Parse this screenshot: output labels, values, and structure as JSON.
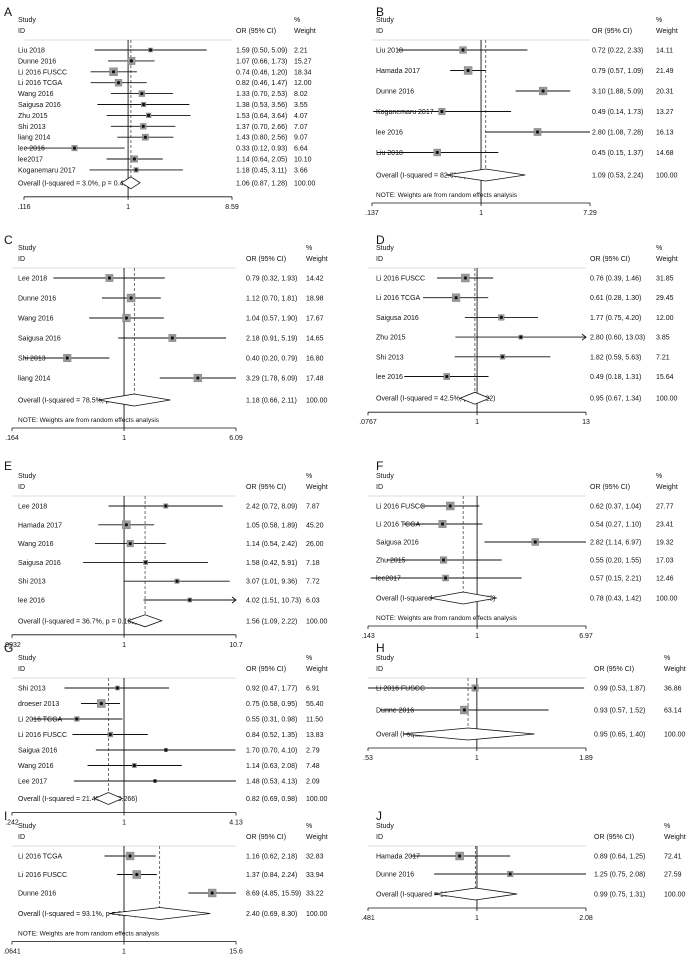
{
  "chart_data": [
    {
      "panel": "A",
      "type": "forest",
      "header": {
        "study": "Study",
        "id": "ID",
        "or": "OR (95% CI)",
        "pct": "%",
        "weight": "Weight"
      },
      "rows": [
        {
          "study": "Liu 2018",
          "or": 1.59,
          "lo": 0.5,
          "hi": 5.09,
          "label": "1.59 (0.50, 5.09)",
          "weight": "2.21"
        },
        {
          "study": "Dunne 2016",
          "or": 1.07,
          "lo": 0.66,
          "hi": 1.73,
          "label": "1.07 (0.66, 1.73)",
          "weight": "15.27"
        },
        {
          "study": "Li 2016 FUSCC",
          "or": 0.74,
          "lo": 0.46,
          "hi": 1.2,
          "label": "0.74 (0.46, 1.20)",
          "weight": "18.34"
        },
        {
          "study": "Li 2016 TCGA",
          "or": 0.82,
          "lo": 0.46,
          "hi": 1.47,
          "label": "0.82 (0.46, 1.47)",
          "weight": "12.00"
        },
        {
          "study": "Wang 2016",
          "or": 1.33,
          "lo": 0.7,
          "hi": 2.53,
          "label": "1.33 (0.70, 2.53)",
          "weight": "8.02"
        },
        {
          "study": "Saigusa 2016",
          "or": 1.38,
          "lo": 0.53,
          "hi": 3.56,
          "label": "1.38 (0.53, 3.56)",
          "weight": "3.55"
        },
        {
          "study": "Zhu 2015",
          "or": 1.53,
          "lo": 0.64,
          "hi": 3.64,
          "label": "1.53 (0.64, 3.64)",
          "weight": "4.07"
        },
        {
          "study": "Shi 2013",
          "or": 1.37,
          "lo": 0.7,
          "hi": 2.66,
          "label": "1.37 (0.70, 2.66)",
          "weight": "7.07"
        },
        {
          "study": "liang 2014",
          "or": 1.43,
          "lo": 0.8,
          "hi": 2.56,
          "label": "1.43 (0.80, 2.56)",
          "weight": "9.07"
        },
        {
          "study": "lee 2016",
          "or": 0.33,
          "lo": 0.12,
          "hi": 0.93,
          "label": "0.33 (0.12, 0.93)",
          "weight": "6.64"
        },
        {
          "study": "lee2017",
          "or": 1.14,
          "lo": 0.64,
          "hi": 2.05,
          "label": "1.14 (0.64, 2.05)",
          "weight": "10.10"
        },
        {
          "study": "Koganemaru 2017",
          "or": 1.18,
          "lo": 0.45,
          "hi": 3.11,
          "label": "1.18 (0.45, 3.11)",
          "weight": "3.66"
        }
      ],
      "overall": {
        "study": "Overall  (I-squared = 3.0%, p = 0.415)",
        "or": 1.06,
        "lo": 0.87,
        "hi": 1.28,
        "label": "1.06 (0.87, 1.28)",
        "weight": "100.00"
      },
      "note": "",
      "axis": {
        "min": 0.116,
        "max": 8.59,
        "ticks": [
          ".116",
          "1",
          "8.59"
        ]
      }
    },
    {
      "panel": "B",
      "type": "forest",
      "header": {
        "study": "Study",
        "id": "ID",
        "or": "OR (95% CI)",
        "pct": "%",
        "weight": "Weight"
      },
      "rows": [
        {
          "study": "Liu 2018",
          "or": 0.72,
          "lo": 0.22,
          "hi": 2.33,
          "label": "0.72 (0.22, 2.33)",
          "weight": "14.11"
        },
        {
          "study": "Hamada 2017",
          "or": 0.79,
          "lo": 0.57,
          "hi": 1.09,
          "label": "0.79 (0.57, 1.09)",
          "weight": "21.49"
        },
        {
          "study": "Dunne 2016",
          "or": 3.1,
          "lo": 1.88,
          "hi": 5.09,
          "label": "3.10 (1.88, 5.09)",
          "weight": "20.31"
        },
        {
          "study": "Koganemaru 2017",
          "or": 0.49,
          "lo": 0.14,
          "hi": 1.73,
          "label": "0.49 (0.14, 1.73)",
          "weight": "13.27"
        },
        {
          "study": "lee 2016",
          "or": 2.8,
          "lo": 1.08,
          "hi": 7.28,
          "label": "2.80 (1.08, 7.28)",
          "weight": "16.13"
        },
        {
          "study": "Liu 2018",
          "or": 0.45,
          "lo": 0.15,
          "hi": 1.37,
          "label": "0.45 (0.15, 1.37)",
          "weight": "14.68"
        }
      ],
      "overall": {
        "study": "Overall  (I-squared = 82.6%, p = 0.000)",
        "or": 1.09,
        "lo": 0.53,
        "hi": 2.24,
        "label": "1.09 (0.53, 2.24)",
        "weight": "100.00"
      },
      "note": "NOTE: Weights are from random effects analysis",
      "axis": {
        "min": 0.137,
        "max": 7.29,
        "ticks": [
          ".137",
          "1",
          "7.29"
        ]
      }
    },
    {
      "panel": "C",
      "type": "forest",
      "header": {
        "study": "Study",
        "id": "ID",
        "or": "OR (95% CI)",
        "pct": "%",
        "weight": "Weight"
      },
      "rows": [
        {
          "study": "Lee 2018",
          "or": 0.79,
          "lo": 0.32,
          "hi": 1.93,
          "label": "0.79 (0.32, 1.93)",
          "weight": "14.42"
        },
        {
          "study": "Dunne 2016",
          "or": 1.12,
          "lo": 0.7,
          "hi": 1.81,
          "label": "1.12 (0.70, 1.81)",
          "weight": "18.98"
        },
        {
          "study": "Wang 2016",
          "or": 1.04,
          "lo": 0.57,
          "hi": 1.9,
          "label": "1.04 (0.57, 1.90)",
          "weight": "17.67"
        },
        {
          "study": "Saigusa 2016",
          "or": 2.18,
          "lo": 0.91,
          "hi": 5.19,
          "label": "2.18 (0.91, 5.19)",
          "weight": "14.65"
        },
        {
          "study": "Shi 2013",
          "or": 0.4,
          "lo": 0.2,
          "hi": 0.79,
          "label": "0.40 (0.20, 0.79)",
          "weight": "16.80"
        },
        {
          "study": "liang 2014",
          "or": 3.29,
          "lo": 1.78,
          "hi": 6.09,
          "label": "3.29 (1.78, 6.09)",
          "weight": "17.48"
        }
      ],
      "overall": {
        "study": "Overall  (I-squared = 78.5%, p = 0.000)",
        "or": 1.18,
        "lo": 0.66,
        "hi": 2.11,
        "label": "1.18 (0.66, 2.11)",
        "weight": "100.00"
      },
      "note": "NOTE: Weights are from random effects analysis",
      "axis": {
        "min": 0.164,
        "max": 6.09,
        "ticks": [
          ".164",
          "1",
          "6.09"
        ]
      }
    },
    {
      "panel": "D",
      "type": "forest",
      "header": {
        "study": "Study",
        "id": "ID",
        "or": "OR (95% CI)",
        "pct": "%",
        "weight": "Weight"
      },
      "rows": [
        {
          "study": "Li 2016 FUSCC",
          "or": 0.76,
          "lo": 0.39,
          "hi": 1.46,
          "label": "0.76 (0.39, 1.46)",
          "weight": "31.85"
        },
        {
          "study": "Li 2016 TCGA",
          "or": 0.61,
          "lo": 0.28,
          "hi": 1.3,
          "label": "0.61 (0.28, 1.30)",
          "weight": "29.45"
        },
        {
          "study": "Saigusa 2016",
          "or": 1.77,
          "lo": 0.75,
          "hi": 4.2,
          "label": "1.77 (0.75, 4.20)",
          "weight": "12.00"
        },
        {
          "study": "Zhu 2015",
          "or": 2.8,
          "lo": 0.6,
          "hi": 13.03,
          "label": "2.80 (0.60, 13.03)",
          "weight": "3.85"
        },
        {
          "study": "Shi 2013",
          "or": 1.82,
          "lo": 0.59,
          "hi": 5.63,
          "label": "1.82 (0.59, 5.63)",
          "weight": "7.21"
        },
        {
          "study": "lee 2016",
          "or": 0.49,
          "lo": 0.18,
          "hi": 1.31,
          "label": "0.49 (0.18, 1.31)",
          "weight": "15.64"
        }
      ],
      "overall": {
        "study": "Overall  (I-squared = 42.5%, p = 0.122)",
        "or": 0.95,
        "lo": 0.67,
        "hi": 1.34,
        "label": "0.95 (0.67, 1.34)",
        "weight": "100.00"
      },
      "note": "",
      "axis": {
        "min": 0.0767,
        "max": 13,
        "ticks": [
          ".0767",
          "1",
          "13"
        ]
      }
    },
    {
      "panel": "E",
      "type": "forest",
      "header": {
        "study": "Study",
        "id": "ID",
        "or": "OR (95% CI)",
        "pct": "%",
        "weight": "Weight"
      },
      "rows": [
        {
          "study": "Lee 2018",
          "or": 2.42,
          "lo": 0.72,
          "hi": 8.09,
          "label": "2.42 (0.72, 8.09)",
          "weight": "7.87"
        },
        {
          "study": "Hamada 2017",
          "or": 1.05,
          "lo": 0.58,
          "hi": 1.89,
          "label": "1.05 (0.58, 1.89)",
          "weight": "45.20"
        },
        {
          "study": "Wang 2016",
          "or": 1.14,
          "lo": 0.54,
          "hi": 2.42,
          "label": "1.14 (0.54, 2.42)",
          "weight": "26.00"
        },
        {
          "study": "Saigusa 2016",
          "or": 1.58,
          "lo": 0.42,
          "hi": 5.91,
          "label": "1.58 (0.42, 5.91)",
          "weight": "7.18"
        },
        {
          "study": "Shi 2013",
          "or": 3.07,
          "lo": 1.01,
          "hi": 9.36,
          "label": "3.07 (1.01, 9.36)",
          "weight": "7.72"
        },
        {
          "study": "lee 2016",
          "or": 4.02,
          "lo": 1.51,
          "hi": 10.73,
          "label": "4.02 (1.51, 10.73)",
          "weight": "6.03"
        }
      ],
      "overall": {
        "study": "Overall  (I-squared = 36.7%, p = 0.162)",
        "or": 1.56,
        "lo": 1.09,
        "hi": 2.22,
        "label": "1.56 (1.09, 2.22)",
        "weight": "100.00"
      },
      "note": "",
      "axis": {
        "min": 0.0932,
        "max": 10.7,
        "ticks": [
          ".0932",
          "1",
          "10.7"
        ]
      }
    },
    {
      "panel": "F",
      "type": "forest",
      "header": {
        "study": "Study",
        "id": "ID",
        "or": "OR (95% CI)",
        "pct": "%",
        "weight": "Weight"
      },
      "rows": [
        {
          "study": "Li 2016 FUSCC",
          "or": 0.62,
          "lo": 0.37,
          "hi": 1.04,
          "label": "0.62 (0.37, 1.04)",
          "weight": "27.77"
        },
        {
          "study": "Li 2016 TCGA",
          "or": 0.54,
          "lo": 0.27,
          "hi": 1.1,
          "label": "0.54 (0.27, 1.10)",
          "weight": "23.41"
        },
        {
          "study": "Saigusa 2016",
          "or": 2.82,
          "lo": 1.14,
          "hi": 6.97,
          "label": "2.82 (1.14, 6.97)",
          "weight": "19.32"
        },
        {
          "study": "Zhu 2015",
          "or": 0.55,
          "lo": 0.2,
          "hi": 1.55,
          "label": "0.55 (0.20, 1.55)",
          "weight": "17.03"
        },
        {
          "study": "lee2017",
          "or": 0.57,
          "lo": 0.15,
          "hi": 2.21,
          "label": "0.57 (0.15, 2.21)",
          "weight": "12.46"
        }
      ],
      "overall": {
        "study": "Overall  (I-squared = 60.2%, p = 0.040)",
        "or": 0.78,
        "lo": 0.43,
        "hi": 1.42,
        "label": "0.78 (0.43, 1.42)",
        "weight": "100.00"
      },
      "note": "NOTE: Weights are from random effects analysis",
      "axis": {
        "min": 0.143,
        "max": 6.97,
        "ticks": [
          ".143",
          "1",
          "6.97"
        ]
      }
    },
    {
      "panel": "G",
      "type": "forest",
      "header": {
        "study": "Study",
        "id": "ID",
        "or": "OR (95% CI)",
        "pct": "%",
        "weight": "Weight"
      },
      "rows": [
        {
          "study": "Shi 2013",
          "or": 0.92,
          "lo": 0.47,
          "hi": 1.77,
          "label": "0.92 (0.47, 1.77)",
          "weight": "6.91"
        },
        {
          "study": "droeser 2013",
          "or": 0.75,
          "lo": 0.58,
          "hi": 0.95,
          "label": "0.75 (0.58, 0.95)",
          "weight": "55.40"
        },
        {
          "study": "Li 2016 TCGA",
          "or": 0.55,
          "lo": 0.31,
          "hi": 0.98,
          "label": "0.55 (0.31, 0.98)",
          "weight": "11.50"
        },
        {
          "study": "Li 2016 FUSCC",
          "or": 0.84,
          "lo": 0.52,
          "hi": 1.35,
          "label": "0.84 (0.52, 1.35)",
          "weight": "13.83"
        },
        {
          "study": "Saigua 2016",
          "or": 1.7,
          "lo": 0.7,
          "hi": 4.1,
          "label": "1.70 (0.70, 4.10)",
          "weight": "2.79"
        },
        {
          "study": "Wang 2016",
          "or": 1.14,
          "lo": 0.63,
          "hi": 2.08,
          "label": "1.14 (0.63, 2.08)",
          "weight": "7.48"
        },
        {
          "study": "Lee 2017",
          "or": 1.48,
          "lo": 0.53,
          "hi": 4.13,
          "label": "1.48 (0.53, 4.13)",
          "weight": "2.09"
        }
      ],
      "overall": {
        "study": "Overall  (I-squared = 21.4%, p = 0.266)",
        "or": 0.82,
        "lo": 0.69,
        "hi": 0.98,
        "label": "0.82 (0.69, 0.98)",
        "weight": "100.00"
      },
      "note": "",
      "axis": {
        "min": 0.242,
        "max": 4.13,
        "ticks": [
          ".242",
          "1",
          "4.13"
        ]
      }
    },
    {
      "panel": "H",
      "type": "forest",
      "header": {
        "study": "Study",
        "id": "ID",
        "or": "OR (95% CI)",
        "pct": "%",
        "weight": "Weight"
      },
      "rows": [
        {
          "study": "Li 2016 FUSCC",
          "or": 0.99,
          "lo": 0.53,
          "hi": 1.87,
          "label": "0.99 (0.53, 1.87)",
          "weight": "36.86"
        },
        {
          "study": "Dunne 2016",
          "or": 0.93,
          "lo": 0.57,
          "hi": 1.52,
          "label": "0.93 (0.57, 1.52)",
          "weight": "63.14"
        }
      ],
      "overall": {
        "study": "Overall  (I-squared = 0.0%, p = 0.865)",
        "or": 0.95,
        "lo": 0.65,
        "hi": 1.4,
        "label": "0.95 (0.65, 1.40)",
        "weight": "100.00"
      },
      "note": "",
      "axis": {
        "min": 0.53,
        "max": 1.89,
        "ticks": [
          ".53",
          "1",
          "1.89"
        ]
      }
    },
    {
      "panel": "I",
      "type": "forest",
      "header": {
        "study": "Study",
        "id": "ID",
        "or": "OR (95% CI)",
        "pct": "%",
        "weight": "Weight"
      },
      "rows": [
        {
          "study": "Li 2016 TCGA",
          "or": 1.16,
          "lo": 0.62,
          "hi": 2.18,
          "label": "1.16 (0.62, 2.18)",
          "weight": "32.83"
        },
        {
          "study": "Li 2016 FUSCC",
          "or": 1.37,
          "lo": 0.84,
          "hi": 2.24,
          "label": "1.37 (0.84, 2.24)",
          "weight": "33.94"
        },
        {
          "study": "Dunne 2016",
          "or": 8.69,
          "lo": 4.85,
          "hi": 15.59,
          "label": "8.69 (4.85, 15.59)",
          "weight": "33.22"
        }
      ],
      "overall": {
        "study": "Overall  (I-squared = 93.1%, p = 0.000)",
        "or": 2.4,
        "lo": 0.69,
        "hi": 8.3,
        "label": "2.40 (0.69, 8.30)",
        "weight": "100.00"
      },
      "note": "NOTE: Weights are from random effects analysis",
      "axis": {
        "min": 0.0641,
        "max": 15.6,
        "ticks": [
          ".0641",
          "1",
          "15.6"
        ]
      }
    },
    {
      "panel": "J",
      "type": "forest",
      "header": {
        "study": "Study",
        "id": "ID",
        "or": "OR (95% CI)",
        "pct": "%",
        "weight": "Weight"
      },
      "rows": [
        {
          "study": "Hamada 2017",
          "or": 0.89,
          "lo": 0.64,
          "hi": 1.25,
          "label": "0.89 (0.64, 1.25)",
          "weight": "72.41"
        },
        {
          "study": "Dunne 2016",
          "or": 1.25,
          "lo": 0.75,
          "hi": 2.08,
          "label": "1.25 (0.75, 2.08)",
          "weight": "27.59"
        }
      ],
      "overall": {
        "study": "Overall  (I-squared = 13.9%, p = 0.281)",
        "or": 0.99,
        "lo": 0.75,
        "hi": 1.31,
        "label": "0.99 (0.75, 1.31)",
        "weight": "100.00"
      },
      "note": "",
      "axis": {
        "min": 0.481,
        "max": 2.08,
        "ticks": [
          ".481",
          "1",
          "2.08"
        ]
      }
    }
  ]
}
